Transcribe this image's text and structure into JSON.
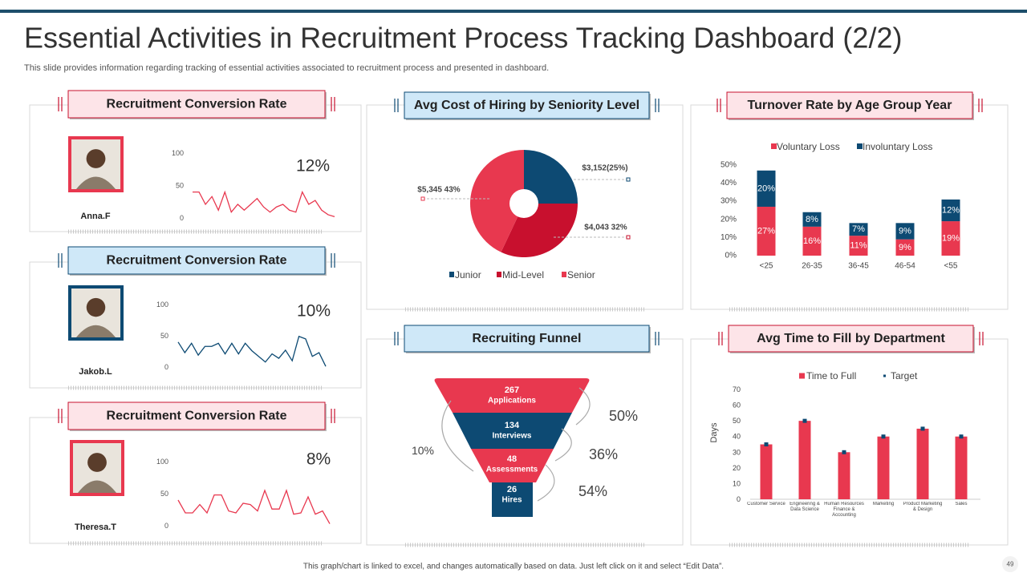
{
  "header": {
    "title": "Essential Activities in Recruitment Process Tracking Dashboard (2/2)",
    "subtitle": "This slide provides information regarding tracking of essential activities associated to recruitment process and presented in dashboard."
  },
  "footer": {
    "note": "This graph/chart is linked to excel, and changes automatically based on data. Just left click on it and select “Edit Data”.",
    "page": "49"
  },
  "chart_data": [
    {
      "type": "sparkline",
      "title": "Recruitment Conversion Rate",
      "person": "Anna.F",
      "kpi": "12%",
      "color": "#e8384f",
      "ylim": [
        0,
        100
      ],
      "yticks": [
        0,
        50,
        100
      ],
      "values": [
        40,
        40,
        21,
        33,
        12,
        40,
        9,
        21,
        12,
        21,
        30,
        17,
        9,
        17,
        21,
        12,
        9,
        40,
        21,
        27,
        12,
        5,
        2
      ]
    },
    {
      "type": "sparkline",
      "title": "Recruitment Conversion Rate",
      "person": "Jakob.L",
      "kpi": "10%",
      "color": "#0d4a73",
      "ylim": [
        0,
        100
      ],
      "yticks": [
        0,
        50,
        100
      ],
      "values": [
        40,
        23,
        38,
        19,
        33,
        33,
        38,
        21,
        38,
        21,
        38,
        26,
        17,
        8,
        21,
        14,
        27,
        10,
        49,
        45,
        17,
        23,
        1
      ]
    },
    {
      "type": "sparkline",
      "title": "Recruitment Conversion Rate",
      "person": "Theresa.T",
      "kpi": "8%",
      "color": "#e8384f",
      "ylim": [
        0,
        100
      ],
      "yticks": [
        0,
        50,
        100
      ],
      "values": [
        40,
        20,
        20,
        33,
        20,
        48,
        48,
        23,
        20,
        35,
        33,
        23,
        55,
        26,
        26,
        55,
        18,
        20,
        45,
        18,
        23,
        3
      ]
    },
    {
      "type": "pie",
      "title": "Avg Cost of Hiring by Seniority Level",
      "categories": [
        "Junior",
        "Mid-Level",
        "Senior"
      ],
      "values": [
        25,
        32,
        43
      ],
      "value_labels": [
        "$3,152(25%)",
        "$4,043 32%",
        "$5,345 43%"
      ],
      "colors": [
        "#0d4a73",
        "#c8102e",
        "#e8384f"
      ]
    },
    {
      "type": "stacked_bar",
      "title": "Turnover Rate by Age Group Year",
      "categories": [
        "<25",
        "26-35",
        "36-45",
        "46-54",
        "<55"
      ],
      "series": [
        {
          "name": "Voluntary Loss",
          "color": "#e8384f",
          "values": [
            27,
            16,
            11,
            9,
            19
          ],
          "value_labels": [
            "27%",
            "16%",
            "11%",
            "9%",
            "19%"
          ]
        },
        {
          "name": "Involuntary Loss",
          "color": "#0d4a73",
          "values": [
            20,
            8,
            7,
            9,
            12
          ],
          "value_labels": [
            "20%",
            "8%",
            "7%",
            "9%",
            "12%"
          ]
        }
      ],
      "ylim": [
        0,
        50
      ],
      "yticks": [
        {
          "value": 0,
          "label": "0%"
        },
        {
          "value": 10,
          "label": "10%"
        },
        {
          "value": 20,
          "label": "20%"
        },
        {
          "value": 30,
          "label": "30%"
        },
        {
          "value": 40,
          "label": "40%"
        },
        {
          "value": 50,
          "label": "50%"
        }
      ]
    },
    {
      "type": "bar_target",
      "title": "Avg Time to Fill by Department",
      "ylabel": "Days",
      "categories": [
        "Customer Service",
        "Engineering & Data Science",
        "Human Resources Finance & Accounting",
        "Marketing",
        "Product Marketing & Design",
        "Sales"
      ],
      "series": [
        {
          "name": "Time to Full",
          "color": "#e8384f",
          "values": [
            35,
            50,
            30,
            40,
            45,
            40
          ]
        },
        {
          "name": "Target",
          "color": "#0d4a73",
          "values": [
            35,
            50,
            30,
            40,
            45,
            40
          ]
        }
      ],
      "ylim": [
        0,
        70
      ],
      "yticks": [
        0,
        10,
        20,
        30,
        40,
        50,
        60,
        70
      ]
    }
  ],
  "funnel": {
    "title": "Recruiting Funnel",
    "stages": [
      {
        "value": 267,
        "label": "Applications"
      },
      {
        "value": 134,
        "label": "Interviews"
      },
      {
        "value": 48,
        "label": "Assessments"
      },
      {
        "value": 26,
        "label": "Hires"
      }
    ],
    "rates": [
      "50%",
      "36%",
      "54%",
      "10%"
    ]
  }
}
